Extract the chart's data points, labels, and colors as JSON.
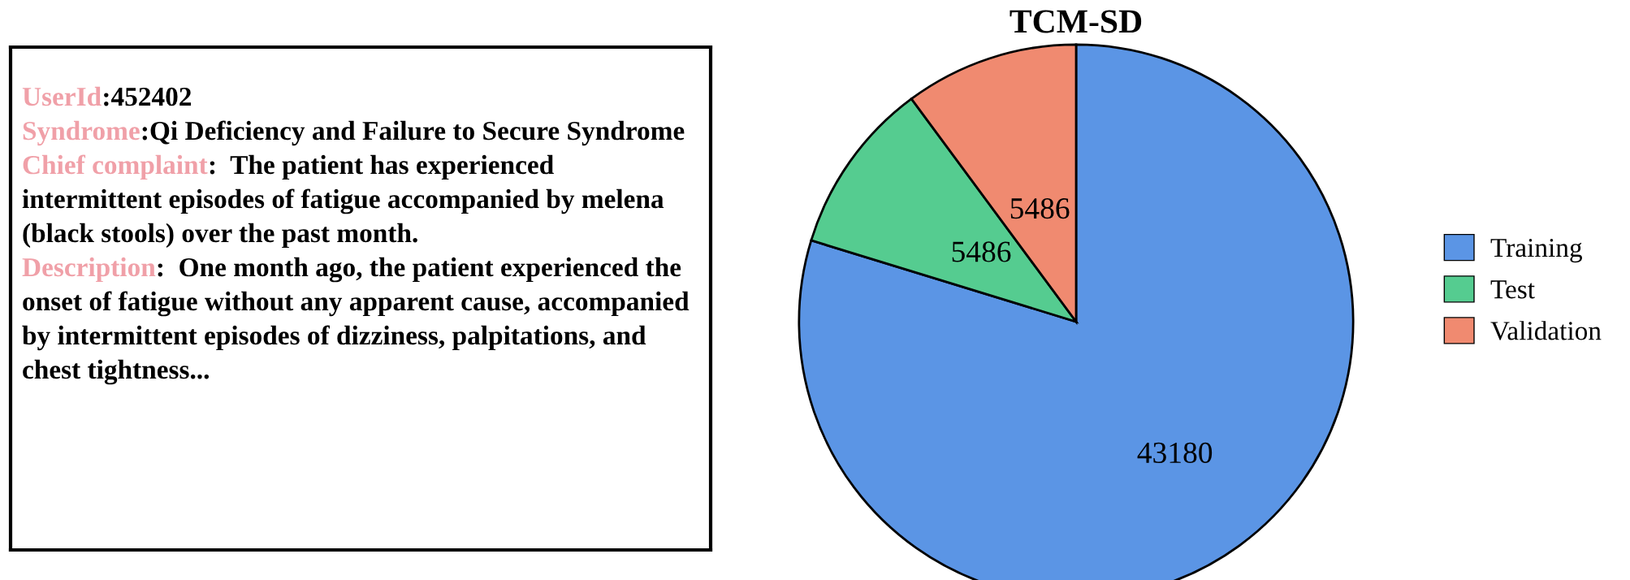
{
  "chart_data": [
    {
      "type": "other",
      "color": "#f0a0a8",
      "annotations": [
        "UserId",
        ":452402",
        "Syndrome",
        ":Qi Deficiency and Failure to Secure Syndrome",
        "Chief complaint",
        ":  The patient has experienced intermittent episodes of fatigue accompanied by melena (black stools) over the past month.",
        "Description",
        ":  One month ago, the patient experienced the onset of fatigue without any apparent cause, accompanied by intermittent episodes of dizziness, palpitations, and chest tightness..."
      ]
    },
    {
      "type": "pie",
      "title": "TCM-SD",
      "categories": [
        "Training",
        "Test",
        "Validation"
      ],
      "values": [
        43180,
        5486,
        5486
      ],
      "colors": [
        "#5b95e5",
        "#55cc90",
        "#f08a70"
      ],
      "data_labels": true,
      "legend": "right"
    }
  ]
}
